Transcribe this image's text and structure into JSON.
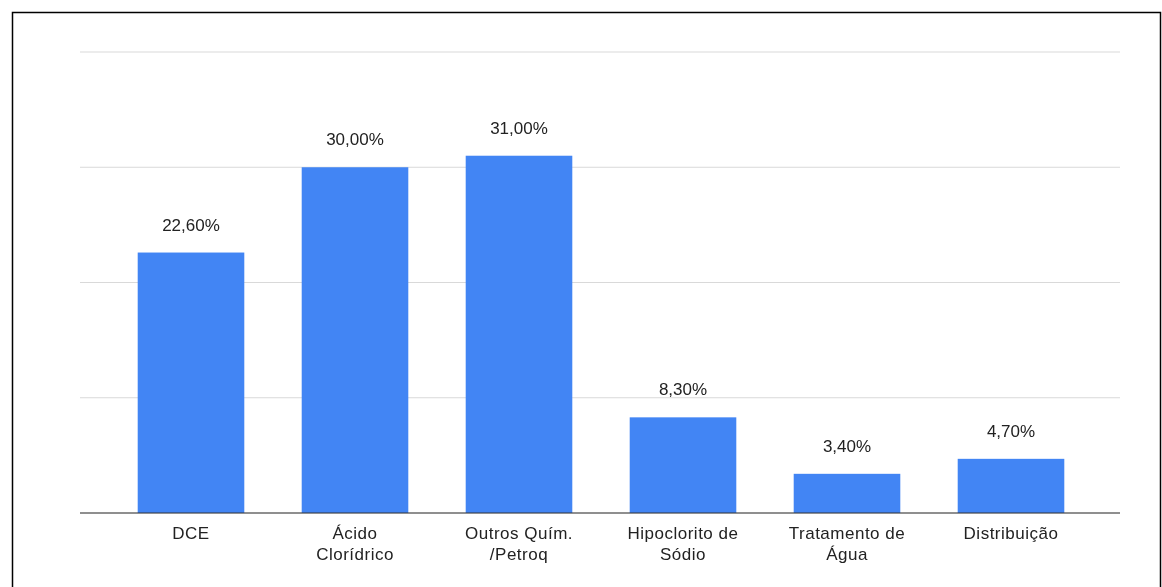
{
  "chart_data": {
    "type": "bar",
    "categories": [
      "DCE",
      "Ácido Clorídrico",
      "Outros Quím. /Petroq",
      "Hipoclorito de Sódio",
      "Tratamento de Água",
      "Distribuição"
    ],
    "values": [
      22.6,
      30,
      31,
      8.3,
      3.4,
      4.7
    ],
    "value_labels": [
      "22,60%",
      "30,00%",
      "31,00%",
      "8,30%",
      "3,40%",
      "4,70%"
    ],
    "color": "#4285f4",
    "ylim": [
      0,
      40
    ],
    "yticks": [
      {
        "value": 0,
        "label": null
      },
      {
        "value": 10,
        "label": null
      },
      {
        "value": 20,
        "label": null
      },
      {
        "value": 30,
        "label": null
      },
      {
        "value": 40,
        "label": null
      }
    ],
    "grid": "y",
    "tick_labels": "x"
  }
}
